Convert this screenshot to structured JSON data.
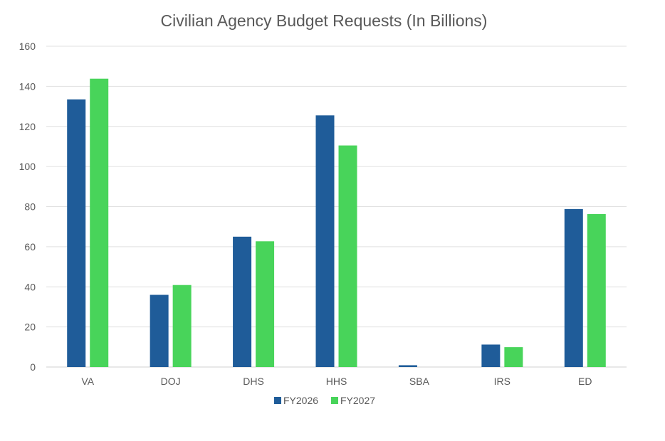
{
  "chart_data": {
    "type": "bar",
    "title": "Civilian Agency Budget Requests (In Billions)",
    "xlabel": "",
    "ylabel": "",
    "categories": [
      "VA",
      "DOJ",
      "DHS",
      "HHS",
      "SBA",
      "IRS",
      "ED"
    ],
    "series": [
      {
        "name": "FY2026",
        "values": [
          133.5,
          36,
          65,
          125.5,
          0.9,
          11.2,
          78.8
        ],
        "color": "#1F5C99"
      },
      {
        "name": "FY2027",
        "values": [
          143.8,
          40.9,
          62.7,
          110.5,
          0,
          9.9,
          76.3
        ],
        "color": "#48D45A"
      }
    ],
    "ylim": [
      0,
      160
    ],
    "yticks": [
      0,
      20,
      40,
      60,
      80,
      100,
      120,
      140,
      160
    ],
    "grid": true,
    "legend_position": "bottom"
  }
}
